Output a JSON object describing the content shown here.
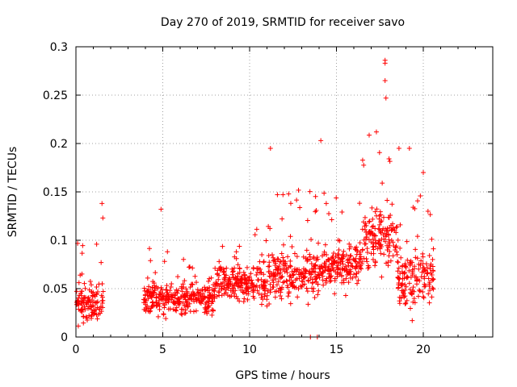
{
  "chart_data": {
    "type": "scatter",
    "title": "Day 270 of 2019, SRMTID for receiver savo",
    "xlabel": "GPS time / hours",
    "ylabel": "SRMTID / TECUs",
    "xlim": [
      0,
      24
    ],
    "ylim": [
      0,
      0.3
    ],
    "xticks": [
      0,
      5,
      10,
      15,
      20
    ],
    "xtick_labels": [
      "0",
      "5",
      "10",
      "15",
      "20"
    ],
    "yticks": [
      0,
      0.05,
      0.1,
      0.15,
      0.2,
      0.25,
      0.3
    ],
    "ytick_labels": [
      "0",
      "0.05",
      "0.1",
      "0.15",
      "0.2",
      "0.25",
      "0.3"
    ],
    "grid": true,
    "marker": "+",
    "color": "#ff0000",
    "series": [
      {
        "name": "SRMTID",
        "segments": [
          {
            "x_start": 0.0,
            "x_end": 1.6,
            "base": 0.035,
            "spread": 0.03
          },
          {
            "x_start": 3.9,
            "x_end": 8.0,
            "base": 0.04,
            "spread": 0.025
          },
          {
            "x_start": 8.0,
            "x_end": 11.0,
            "base": 0.055,
            "spread": 0.03
          },
          {
            "x_start": 11.0,
            "x_end": 14.0,
            "base": 0.065,
            "spread": 0.04
          },
          {
            "x_start": 14.0,
            "x_end": 16.5,
            "base": 0.075,
            "spread": 0.035
          },
          {
            "x_start": 16.5,
            "x_end": 18.5,
            "base": 0.1,
            "spread": 0.05
          },
          {
            "x_start": 18.5,
            "x_end": 20.6,
            "base": 0.06,
            "spread": 0.045
          }
        ],
        "notable_points": [
          {
            "x": 1.5,
            "y": 0.138
          },
          {
            "x": 1.55,
            "y": 0.123
          },
          {
            "x": 4.9,
            "y": 0.132
          },
          {
            "x": 11.2,
            "y": 0.195
          },
          {
            "x": 14.1,
            "y": 0.203
          },
          {
            "x": 17.3,
            "y": 0.212
          },
          {
            "x": 17.8,
            "y": 0.286
          },
          {
            "x": 17.8,
            "y": 0.283
          },
          {
            "x": 17.8,
            "y": 0.265
          },
          {
            "x": 17.85,
            "y": 0.247
          },
          {
            "x": 18.6,
            "y": 0.195
          },
          {
            "x": 19.2,
            "y": 0.195
          },
          {
            "x": 20.0,
            "y": 0.17
          },
          {
            "x": 13.5,
            "y": 0.0
          },
          {
            "x": 13.9,
            "y": 0.0
          }
        ]
      }
    ]
  }
}
